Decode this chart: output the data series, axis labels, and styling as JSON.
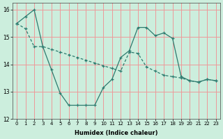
{
  "xlabel": "Humidex (Indice chaleur)",
  "background_color": "#cceedd",
  "grid_color": "#ee9999",
  "line_color": "#2d7a6e",
  "xlim": [
    -0.5,
    23.5
  ],
  "ylim": [
    12,
    16.25
  ],
  "yticks": [
    12,
    13,
    14,
    15,
    16
  ],
  "xticks": [
    0,
    1,
    2,
    3,
    4,
    5,
    6,
    7,
    8,
    9,
    10,
    11,
    12,
    13,
    14,
    15,
    16,
    17,
    18,
    19,
    20,
    21,
    22,
    23
  ],
  "line1_x": [
    0,
    1,
    2,
    3,
    4,
    5,
    6,
    7,
    8,
    9,
    10,
    11,
    12,
    13,
    14,
    15,
    16,
    17,
    18,
    19,
    20,
    21,
    22,
    23
  ],
  "line1_y": [
    15.5,
    15.75,
    16.0,
    14.65,
    13.8,
    12.95,
    12.5,
    12.5,
    12.5,
    12.5,
    13.15,
    13.45,
    14.25,
    14.5,
    15.35,
    15.35,
    15.05,
    15.15,
    14.95,
    13.55,
    13.4,
    13.35,
    13.45,
    13.4
  ],
  "line2_x": [
    0,
    1,
    2,
    3,
    4,
    5,
    6,
    7,
    8,
    9,
    10,
    11,
    12,
    13,
    14,
    15,
    16,
    17,
    18,
    19,
    20,
    21,
    22,
    23
  ],
  "line2_y": [
    15.5,
    15.3,
    14.65,
    14.65,
    14.55,
    14.45,
    14.35,
    14.25,
    14.15,
    14.05,
    13.95,
    13.85,
    13.75,
    14.45,
    14.4,
    13.9,
    13.75,
    13.6,
    13.55,
    13.5,
    13.4,
    13.35,
    13.45,
    13.4
  ]
}
